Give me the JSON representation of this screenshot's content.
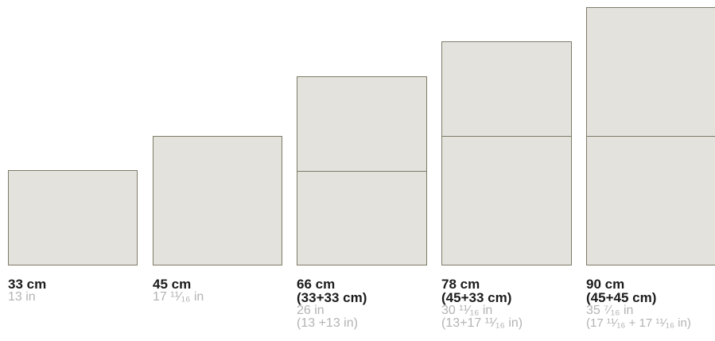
{
  "colors": {
    "panel_fill": "#e4e2dc",
    "panel_border": "#7e7b68",
    "cm_text": "#1b1b1b",
    "inch_text": "#b3b3b3"
  },
  "sizes": [
    {
      "cm": "33 cm",
      "cm_detail": "",
      "inch": "13 in",
      "inch_detail": ""
    },
    {
      "cm": "45 cm",
      "cm_detail": "",
      "inch": "17 ¹¹⁄₁₆ in",
      "inch_detail": ""
    },
    {
      "cm": "66 cm",
      "cm_detail": "(33+33 cm)",
      "inch": "26 in",
      "inch_detail": "(13 +13 in)"
    },
    {
      "cm": "78 cm",
      "cm_detail": "(45+33 cm)",
      "inch": "30 ¹¹⁄₁₆ in",
      "inch_detail": "(13+17 ¹¹⁄₁₆ in)"
    },
    {
      "cm": "90 cm",
      "cm_detail": "(45+45 cm)",
      "inch": "35 ⁷⁄₁₆ in",
      "inch_detail": "(17 ¹¹⁄₁₆ + 17 ¹¹⁄₁₆ in)"
    }
  ]
}
